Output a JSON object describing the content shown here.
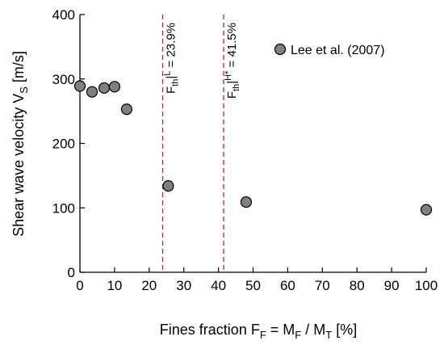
{
  "chart_data": {
    "type": "scatter",
    "x": [
      0,
      3.5,
      7,
      10,
      13.5,
      25.5,
      48,
      100
    ],
    "y": [
      289,
      280,
      286,
      288,
      253,
      134,
      109,
      97
    ],
    "series": [
      {
        "name": "Lee et al. (2007)",
        "marker": "circle",
        "fill": "#808080",
        "stroke": "#000000"
      }
    ],
    "xlim": [
      0,
      100
    ],
    "ylim": [
      0,
      400
    ],
    "xticks": [
      0,
      10,
      20,
      30,
      40,
      50,
      60,
      70,
      80,
      90,
      100
    ],
    "yticks": [
      0,
      100,
      200,
      300,
      400
    ],
    "xlabel": {
      "prefix": "Fines fraction F",
      "sub1": "F",
      "mid": " = M",
      "sub2": "F",
      "mid2": " / M",
      "sub3": "T",
      "suffix": " [%]"
    },
    "ylabel": {
      "prefix": "Shear wave velocity V",
      "sub": "S",
      "suffix": " [m/s]"
    },
    "thresholds": [
      {
        "x": 23.9,
        "base": "F",
        "sub": "th",
        "sup": "L",
        "value_text": " = 23.9%",
        "color": "#e8141e"
      },
      {
        "x": 41.5,
        "base": "F",
        "sub": "th",
        "sup": "H*",
        "value_text": " = 41.5%",
        "color": "#e8141e"
      }
    ],
    "legend_position": "top-right",
    "grid": false
  }
}
